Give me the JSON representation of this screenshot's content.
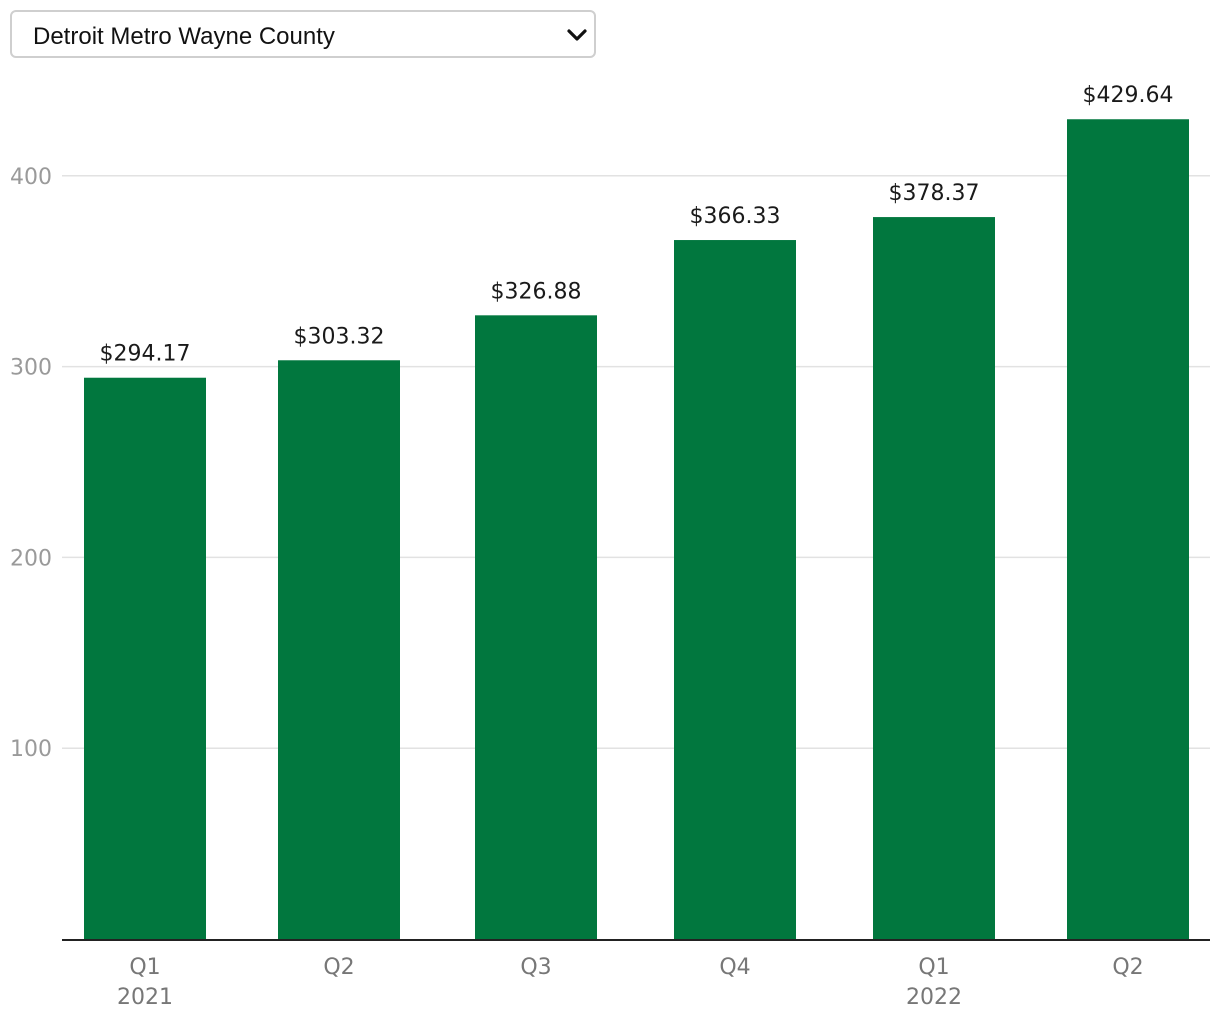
{
  "region_select": {
    "selected": "Detroit Metro Wayne County"
  },
  "colors": {
    "bar": "#01773e",
    "grid": "#e2e2e2",
    "axis": "#222222"
  },
  "chart_data": {
    "type": "bar",
    "categories": [
      "Q1",
      "Q2",
      "Q3",
      "Q4",
      "Q1",
      "Q2"
    ],
    "year_labels": [
      "2021",
      "",
      "",
      "",
      "2022",
      ""
    ],
    "values": [
      294.17,
      303.32,
      326.88,
      366.33,
      378.37,
      429.64
    ],
    "data_labels": [
      "$294.17",
      "$303.32",
      "$326.88",
      "$366.33",
      "$378.37",
      "$429.64"
    ],
    "y_ticks": [
      100,
      200,
      300,
      400
    ],
    "ylim": [
      0,
      440
    ],
    "grid": true,
    "title": "",
    "xlabel": "",
    "ylabel": ""
  }
}
